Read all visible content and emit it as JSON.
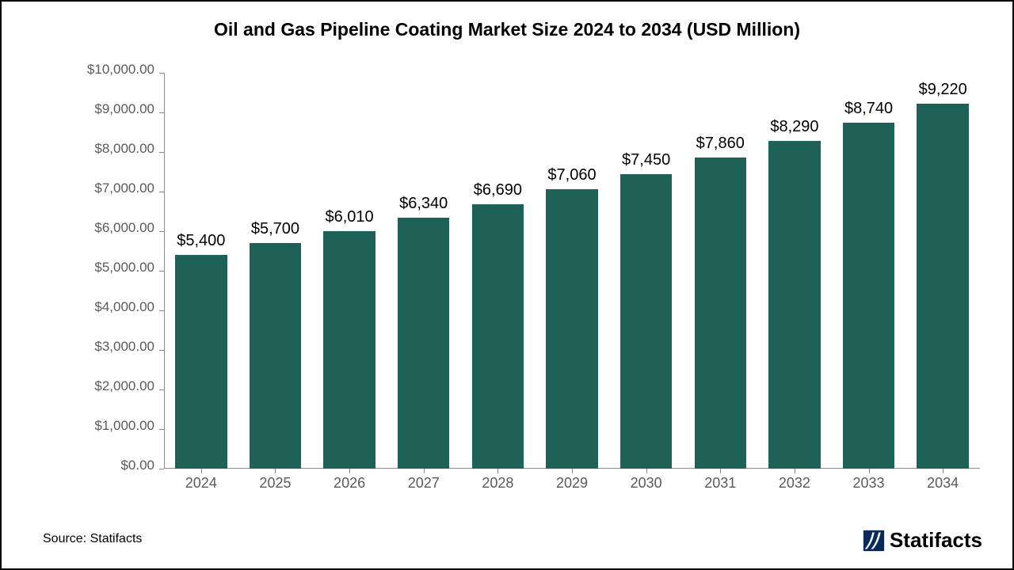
{
  "chart": {
    "type": "bar",
    "title": "Oil and Gas Pipeline Coating Market Size 2024 to 2034 (USD Million)",
    "title_fontsize": 23,
    "title_color": "#000000",
    "background_color": "#ffffff",
    "border_color": "#000000",
    "categories": [
      "2024",
      "2025",
      "2026",
      "2027",
      "2028",
      "2029",
      "2030",
      "2031",
      "2032",
      "2033",
      "2034"
    ],
    "values": [
      5400,
      5700,
      6010,
      6340,
      6690,
      7060,
      7450,
      7860,
      8290,
      8740,
      9220
    ],
    "value_labels": [
      "$5,400",
      "$5,700",
      "$6,010",
      "$6,340",
      "$6,690",
      "$7,060",
      "$7,450",
      "$7,860",
      "$8,290",
      "$8,740",
      "$9,220"
    ],
    "bar_color": "#1d6157",
    "bar_width_ratio": 0.7,
    "y_ticks": [
      0,
      1000,
      2000,
      3000,
      4000,
      5000,
      6000,
      7000,
      8000,
      9000,
      10000
    ],
    "y_tick_labels": [
      "$0.00",
      "$1,000.00",
      "$2,000.00",
      "$3,000.00",
      "$4,000.00",
      "$5,000.00",
      "$6,000.00",
      "$7,000.00",
      "$8,000.00",
      "$9,000.00",
      "$10,000.00"
    ],
    "ylim": [
      0,
      10000
    ],
    "axis_line_color": "#8a8a8a",
    "tick_label_color": "#5a5a5a",
    "tick_fontsize": 17,
    "xlabel_fontsize": 18,
    "value_label_fontsize": 20,
    "value_label_color": "#000000"
  },
  "footer": {
    "source_text": "Source: Statifacts",
    "source_fontsize": 16,
    "brand_text": "Statifacts",
    "brand_fontsize": 26,
    "brand_icon_color": "#0a2a5c"
  }
}
